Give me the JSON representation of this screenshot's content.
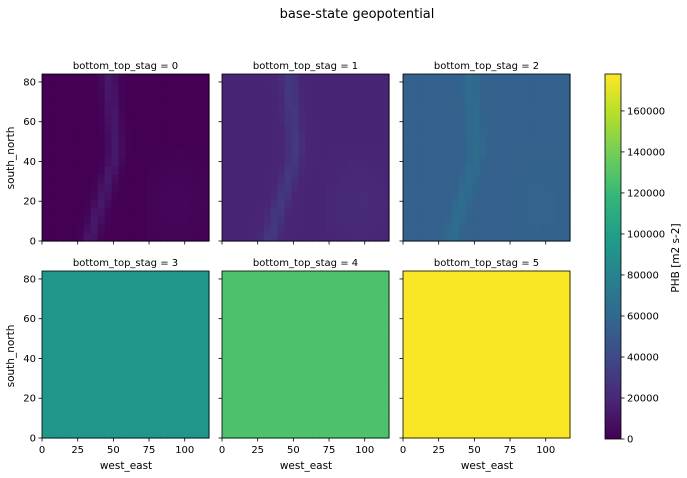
{
  "figure": {
    "suptitle": "base-state geopotential",
    "xlabel": "west_east",
    "ylabel": "south_north"
  },
  "colors": {
    "viridis": [
      "#440154",
      "#482878",
      "#3e4989",
      "#31688e",
      "#26828e",
      "#1f9e89",
      "#35b779",
      "#6ece58",
      "#b5de2b",
      "#fde725"
    ],
    "axis": "#000000",
    "background": "#ffffff"
  },
  "chart_data": {
    "type": "heatmap",
    "colormap": "viridis",
    "xlim": [
      0,
      117
    ],
    "ylim": [
      0,
      84
    ],
    "xticks": [
      "0",
      "25",
      "50",
      "75",
      "100"
    ],
    "yticks": [
      "0",
      "20",
      "40",
      "60",
      "80"
    ],
    "panels": [
      {
        "title": "bottom_top_stag = 0",
        "field_base": 0,
        "terrain_amplitude": 12000
      },
      {
        "title": "bottom_top_stag = 1",
        "field_base": 18000,
        "terrain_amplitude": 12000
      },
      {
        "title": "bottom_top_stag = 2",
        "field_base": 55000,
        "terrain_amplitude": 8000
      },
      {
        "title": "bottom_top_stag = 3",
        "field_base": 93000,
        "terrain_amplitude": 0
      },
      {
        "title": "bottom_top_stag = 4",
        "field_base": 127000,
        "terrain_amplitude": 0
      },
      {
        "title": "bottom_top_stag = 5",
        "field_base": 177000,
        "terrain_amplitude": 0
      }
    ],
    "colorbar": {
      "label": "PHB [m2 s-2]",
      "vmin": 0,
      "vmax": 178000,
      "ticks": [
        "0",
        "20000",
        "40000",
        "60000",
        "80000",
        "100000",
        "120000",
        "140000",
        "160000"
      ],
      "tick_values": [
        0,
        20000,
        40000,
        60000,
        80000,
        100000,
        120000,
        140000,
        160000
      ]
    }
  }
}
